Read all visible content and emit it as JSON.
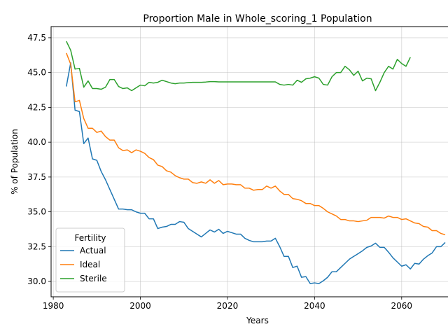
{
  "chart_data": {
    "type": "line",
    "title": "Proportion Male in Whole_scoring_1 Population",
    "xlabel": "Years",
    "ylabel": "% of Population",
    "xlim": [
      1979.5,
      2074.5
    ],
    "ylim": [
      28.9,
      48.3
    ],
    "x_ticks": [
      1980,
      2000,
      2020,
      2040,
      2060
    ],
    "y_ticks": [
      30.0,
      32.5,
      35.0,
      37.5,
      40.0,
      42.5,
      45.0,
      47.5
    ],
    "x_tick_labels": [
      "1980",
      "2000",
      "2020",
      "2040",
      "2060"
    ],
    "y_tick_labels": [
      "30.0",
      "32.5",
      "35.0",
      "37.5",
      "40.0",
      "42.5",
      "45.0",
      "47.5"
    ],
    "grid": true,
    "legend": {
      "title": "Fertility",
      "placement": "lower-left"
    },
    "series": [
      {
        "name": "Actual",
        "color": "#1f77b4",
        "points": [
          [
            1983,
            44.0
          ],
          [
            1984,
            45.7
          ],
          [
            1985,
            42.3
          ],
          [
            1986,
            42.2
          ],
          [
            1987,
            39.9
          ],
          [
            1988,
            40.3
          ],
          [
            1989,
            38.8
          ],
          [
            1990,
            38.7
          ],
          [
            1991,
            37.9
          ],
          [
            1992,
            37.3
          ],
          [
            1993,
            36.6
          ],
          [
            1994,
            35.9
          ],
          [
            1995,
            35.2
          ],
          [
            1996,
            35.2
          ],
          [
            1997,
            35.15
          ],
          [
            1998,
            35.15
          ],
          [
            1999,
            35.0
          ],
          [
            2000,
            34.9
          ],
          [
            2001,
            34.9
          ],
          [
            2002,
            34.5
          ],
          [
            2003,
            34.5
          ],
          [
            2004,
            33.8
          ],
          [
            2005,
            33.9
          ],
          [
            2006,
            33.95
          ],
          [
            2007,
            34.1
          ],
          [
            2008,
            34.1
          ],
          [
            2009,
            34.3
          ],
          [
            2010,
            34.25
          ],
          [
            2011,
            33.8
          ],
          [
            2012,
            33.6
          ],
          [
            2013,
            33.4
          ],
          [
            2014,
            33.2
          ],
          [
            2015,
            33.45
          ],
          [
            2016,
            33.7
          ],
          [
            2017,
            33.55
          ],
          [
            2018,
            33.75
          ],
          [
            2019,
            33.45
          ],
          [
            2020,
            33.6
          ],
          [
            2021,
            33.5
          ],
          [
            2022,
            33.4
          ],
          [
            2023,
            33.4
          ],
          [
            2024,
            33.1
          ],
          [
            2025,
            32.95
          ],
          [
            2026,
            32.85
          ],
          [
            2027,
            32.85
          ],
          [
            2028,
            32.85
          ],
          [
            2029,
            32.9
          ],
          [
            2030,
            32.9
          ],
          [
            2031,
            33.1
          ],
          [
            2032,
            32.5
          ],
          [
            2033,
            31.8
          ],
          [
            2034,
            31.8
          ],
          [
            2035,
            31.0
          ],
          [
            2036,
            31.1
          ],
          [
            2037,
            30.3
          ],
          [
            2038,
            30.35
          ],
          [
            2039,
            29.85
          ],
          [
            2040,
            29.9
          ],
          [
            2041,
            29.85
          ],
          [
            2042,
            30.05
          ],
          [
            2043,
            30.3
          ],
          [
            2044,
            30.7
          ],
          [
            2045,
            30.7
          ],
          [
            2046,
            31.0
          ],
          [
            2047,
            31.3
          ],
          [
            2048,
            31.6
          ],
          [
            2049,
            31.8
          ],
          [
            2050,
            32.0
          ],
          [
            2051,
            32.2
          ],
          [
            2052,
            32.45
          ],
          [
            2053,
            32.55
          ],
          [
            2054,
            32.75
          ],
          [
            2055,
            32.45
          ],
          [
            2056,
            32.45
          ],
          [
            2057,
            32.1
          ],
          [
            2058,
            31.7
          ],
          [
            2059,
            31.4
          ],
          [
            2060,
            31.1
          ],
          [
            2061,
            31.2
          ],
          [
            2062,
            30.9
          ],
          [
            2063,
            31.3
          ],
          [
            2064,
            31.25
          ],
          [
            2065,
            31.6
          ],
          [
            2066,
            31.85
          ],
          [
            2067,
            32.05
          ],
          [
            2068,
            32.5
          ],
          [
            2069,
            32.5
          ],
          [
            2070,
            32.8
          ]
        ]
      },
      {
        "name": "Ideal",
        "color": "#ff7f0e",
        "points": [
          [
            1983,
            46.4
          ],
          [
            1984,
            45.6
          ],
          [
            1985,
            42.9
          ],
          [
            1986,
            43.0
          ],
          [
            1987,
            41.7
          ],
          [
            1988,
            41.0
          ],
          [
            1989,
            41.0
          ],
          [
            1990,
            40.7
          ],
          [
            1991,
            40.8
          ],
          [
            1992,
            40.4
          ],
          [
            1993,
            40.15
          ],
          [
            1994,
            40.15
          ],
          [
            1995,
            39.6
          ],
          [
            1996,
            39.4
          ],
          [
            1997,
            39.45
          ],
          [
            1998,
            39.25
          ],
          [
            1999,
            39.45
          ],
          [
            2000,
            39.35
          ],
          [
            2001,
            39.2
          ],
          [
            2002,
            38.9
          ],
          [
            2003,
            38.75
          ],
          [
            2004,
            38.35
          ],
          [
            2005,
            38.25
          ],
          [
            2006,
            37.95
          ],
          [
            2007,
            37.85
          ],
          [
            2008,
            37.6
          ],
          [
            2009,
            37.45
          ],
          [
            2010,
            37.35
          ],
          [
            2011,
            37.35
          ],
          [
            2012,
            37.1
          ],
          [
            2013,
            37.05
          ],
          [
            2014,
            37.15
          ],
          [
            2015,
            37.05
          ],
          [
            2016,
            37.3
          ],
          [
            2017,
            37.05
          ],
          [
            2018,
            37.25
          ],
          [
            2019,
            36.95
          ],
          [
            2020,
            37.0
          ],
          [
            2021,
            37.0
          ],
          [
            2022,
            36.95
          ],
          [
            2023,
            36.95
          ],
          [
            2024,
            36.7
          ],
          [
            2025,
            36.7
          ],
          [
            2026,
            36.55
          ],
          [
            2027,
            36.6
          ],
          [
            2028,
            36.6
          ],
          [
            2029,
            36.85
          ],
          [
            2030,
            36.7
          ],
          [
            2031,
            36.85
          ],
          [
            2032,
            36.5
          ],
          [
            2033,
            36.25
          ],
          [
            2034,
            36.25
          ],
          [
            2035,
            35.95
          ],
          [
            2036,
            35.9
          ],
          [
            2037,
            35.8
          ],
          [
            2038,
            35.6
          ],
          [
            2039,
            35.6
          ],
          [
            2040,
            35.45
          ],
          [
            2041,
            35.45
          ],
          [
            2042,
            35.25
          ],
          [
            2043,
            35.0
          ],
          [
            2044,
            34.85
          ],
          [
            2045,
            34.7
          ],
          [
            2046,
            34.45
          ],
          [
            2047,
            34.45
          ],
          [
            2048,
            34.35
          ],
          [
            2049,
            34.35
          ],
          [
            2050,
            34.3
          ],
          [
            2051,
            34.35
          ],
          [
            2052,
            34.4
          ],
          [
            2053,
            34.6
          ],
          [
            2054,
            34.6
          ],
          [
            2055,
            34.6
          ],
          [
            2056,
            34.55
          ],
          [
            2057,
            34.7
          ],
          [
            2058,
            34.6
          ],
          [
            2059,
            34.6
          ],
          [
            2060,
            34.45
          ],
          [
            2061,
            34.5
          ],
          [
            2062,
            34.35
          ],
          [
            2063,
            34.2
          ],
          [
            2064,
            34.15
          ],
          [
            2065,
            33.95
          ],
          [
            2066,
            33.9
          ],
          [
            2067,
            33.65
          ],
          [
            2068,
            33.65
          ],
          [
            2069,
            33.45
          ],
          [
            2070,
            33.35
          ]
        ]
      },
      {
        "name": "Sterile",
        "color": "#2ca02c",
        "points": [
          [
            1983,
            47.25
          ],
          [
            1984,
            46.6
          ],
          [
            1985,
            45.25
          ],
          [
            1986,
            45.3
          ],
          [
            1987,
            43.95
          ],
          [
            1988,
            44.4
          ],
          [
            1989,
            43.85
          ],
          [
            1990,
            43.85
          ],
          [
            1991,
            43.8
          ],
          [
            1992,
            43.95
          ],
          [
            1993,
            44.5
          ],
          [
            1994,
            44.5
          ],
          [
            1995,
            44.0
          ],
          [
            1996,
            43.85
          ],
          [
            1997,
            43.9
          ],
          [
            1998,
            43.7
          ],
          [
            1999,
            43.9
          ],
          [
            2000,
            44.1
          ],
          [
            2001,
            44.05
          ],
          [
            2002,
            44.3
          ],
          [
            2003,
            44.25
          ],
          [
            2004,
            44.3
          ],
          [
            2005,
            44.45
          ],
          [
            2006,
            44.35
          ],
          [
            2007,
            44.25
          ],
          [
            2008,
            44.2
          ],
          [
            2009,
            44.25
          ],
          [
            2010,
            44.25
          ],
          [
            2011,
            44.28
          ],
          [
            2012,
            44.3
          ],
          [
            2013,
            44.3
          ],
          [
            2014,
            44.3
          ],
          [
            2015,
            44.32
          ],
          [
            2016,
            44.35
          ],
          [
            2017,
            44.35
          ],
          [
            2018,
            44.33
          ],
          [
            2019,
            44.33
          ],
          [
            2020,
            44.33
          ],
          [
            2021,
            44.33
          ],
          [
            2022,
            44.33
          ],
          [
            2023,
            44.33
          ],
          [
            2024,
            44.33
          ],
          [
            2025,
            44.33
          ],
          [
            2026,
            44.33
          ],
          [
            2027,
            44.33
          ],
          [
            2028,
            44.33
          ],
          [
            2029,
            44.33
          ],
          [
            2030,
            44.33
          ],
          [
            2031,
            44.33
          ],
          [
            2032,
            44.15
          ],
          [
            2033,
            44.1
          ],
          [
            2034,
            44.15
          ],
          [
            2035,
            44.1
          ],
          [
            2036,
            44.45
          ],
          [
            2037,
            44.3
          ],
          [
            2038,
            44.55
          ],
          [
            2039,
            44.6
          ],
          [
            2040,
            44.7
          ],
          [
            2041,
            44.6
          ],
          [
            2042,
            44.15
          ],
          [
            2043,
            44.1
          ],
          [
            2044,
            44.7
          ],
          [
            2045,
            45.0
          ],
          [
            2046,
            45.0
          ],
          [
            2047,
            45.45
          ],
          [
            2048,
            45.2
          ],
          [
            2049,
            44.8
          ],
          [
            2050,
            45.1
          ],
          [
            2051,
            44.4
          ],
          [
            2052,
            44.6
          ],
          [
            2053,
            44.55
          ],
          [
            2054,
            43.7
          ],
          [
            2055,
            44.3
          ],
          [
            2056,
            45.0
          ],
          [
            2057,
            45.45
          ],
          [
            2058,
            45.25
          ],
          [
            2059,
            45.95
          ],
          [
            2060,
            45.65
          ],
          [
            2061,
            45.45
          ],
          [
            2062,
            46.1
          ]
        ]
      }
    ]
  }
}
